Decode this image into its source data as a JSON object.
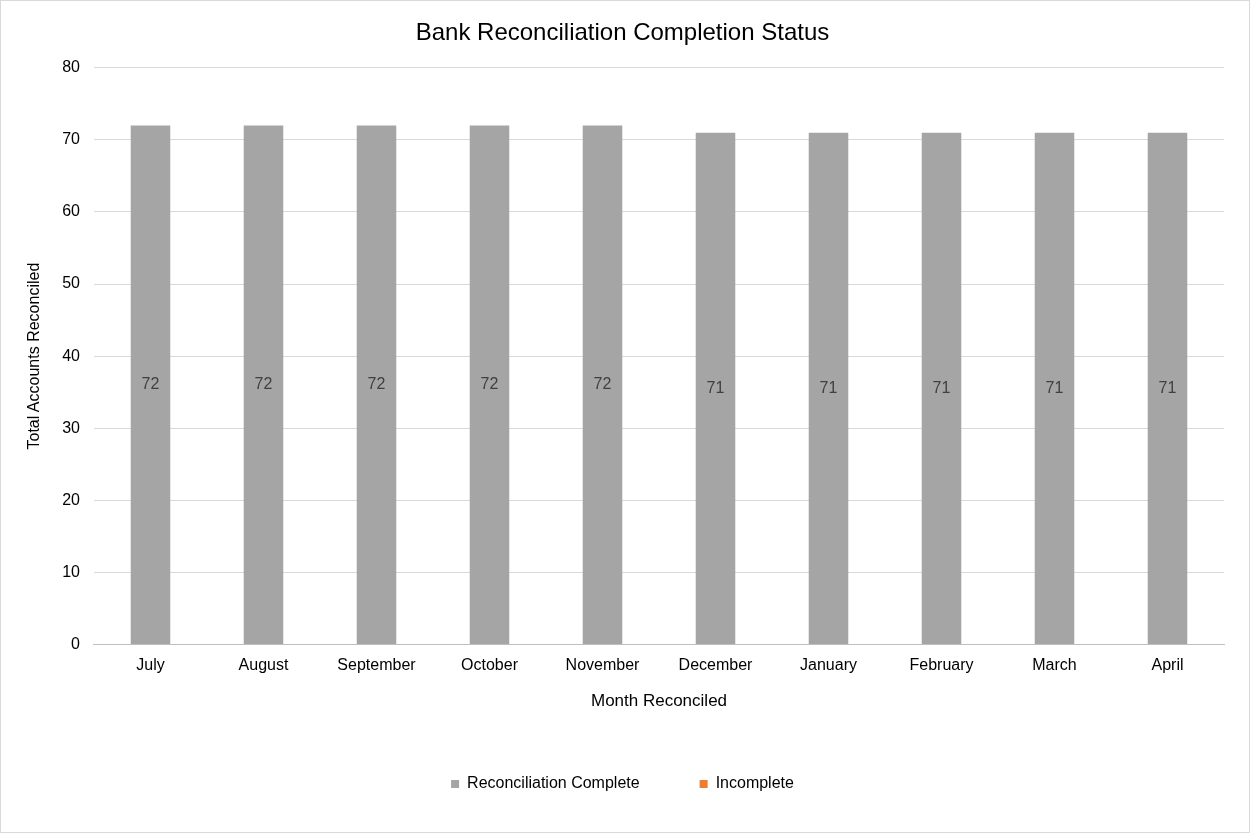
{
  "chart_data": {
    "type": "bar",
    "title": "Bank Reconciliation Completion Status",
    "xlabel": "Month Reconciled",
    "ylabel": "Total Accounts Reconciled",
    "categories": [
      "July",
      "August",
      "September",
      "October",
      "November",
      "December",
      "January",
      "February",
      "March",
      "April"
    ],
    "stacked": true,
    "series": [
      {
        "name": "Reconciliation Complete",
        "color": "#a5a5a5",
        "values": [
          72,
          72,
          72,
          72,
          72,
          71,
          71,
          71,
          71,
          71
        ],
        "value_labels": [
          "72",
          "72",
          "72",
          "72",
          "72",
          "71",
          "71",
          "71",
          "71",
          "71"
        ]
      },
      {
        "name": "Incomplete",
        "color": "#ed7d31",
        "values": [
          0,
          0,
          0,
          0,
          0,
          0,
          0,
          0,
          0,
          0
        ]
      }
    ],
    "ylim": [
      0,
      80
    ],
    "yticks": [
      0,
      10,
      20,
      30,
      40,
      50,
      60,
      70,
      80
    ],
    "grid": "y",
    "legend": "bottom"
  }
}
